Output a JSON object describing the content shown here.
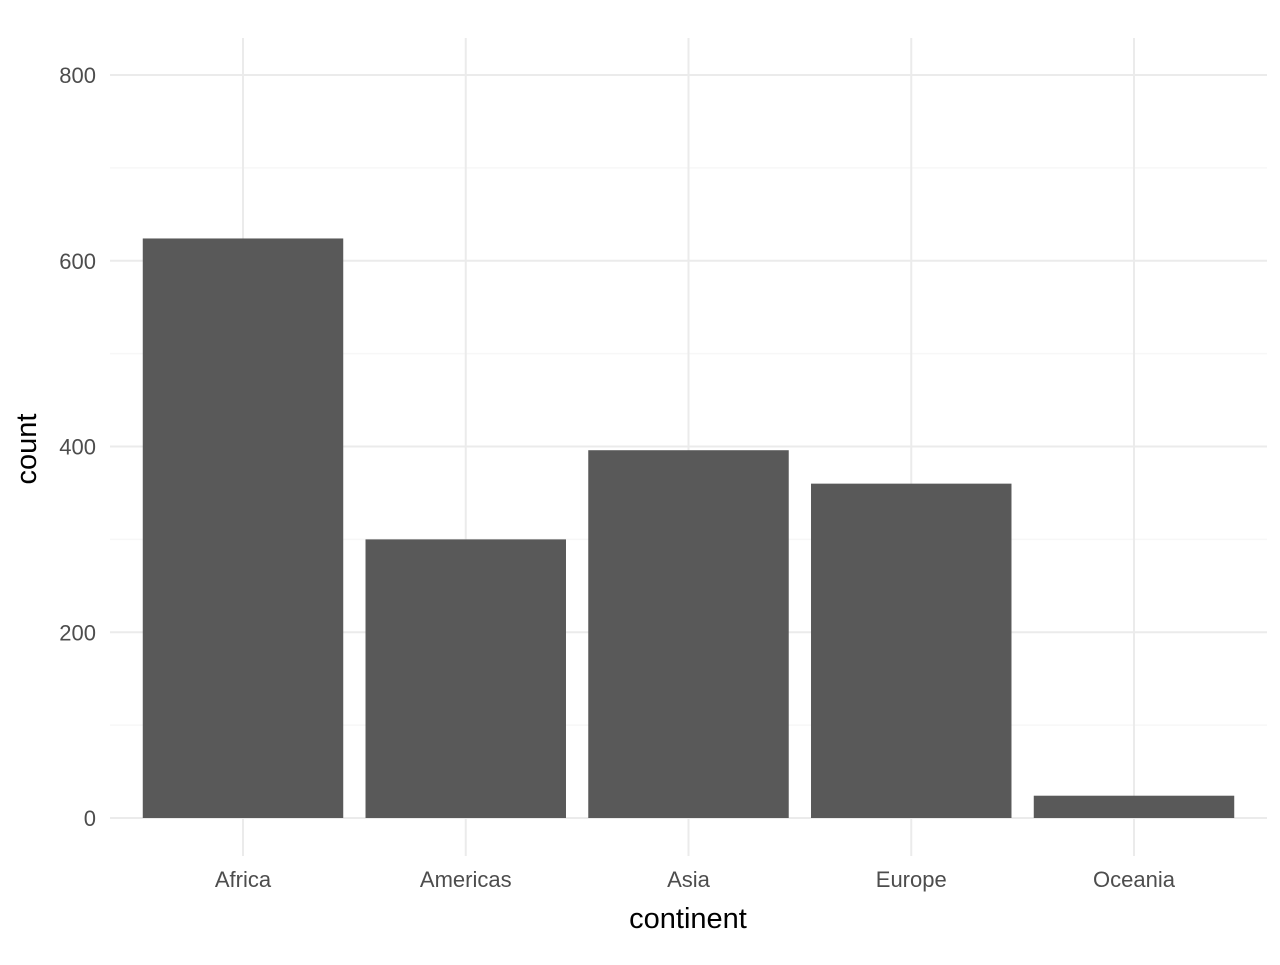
{
  "chart_data": {
    "type": "bar",
    "categories": [
      "Africa",
      "Americas",
      "Asia",
      "Europe",
      "Oceania"
    ],
    "values": [
      624,
      300,
      396,
      360,
      24
    ],
    "xlabel": "continent",
    "ylabel": "count",
    "ylim": [
      0,
      840
    ],
    "yticks": [
      0,
      200,
      400,
      600,
      800
    ],
    "y_minor_ticks": [
      100,
      300,
      500,
      700
    ],
    "grid": true,
    "legend": "none",
    "colors": {
      "bar": "#595959",
      "grid_major": "#ebebeb",
      "grid_minor": "#f7f7f7",
      "tick_text": "#4d4d4d",
      "axis_title": "#000000",
      "background": "#ffffff"
    }
  }
}
